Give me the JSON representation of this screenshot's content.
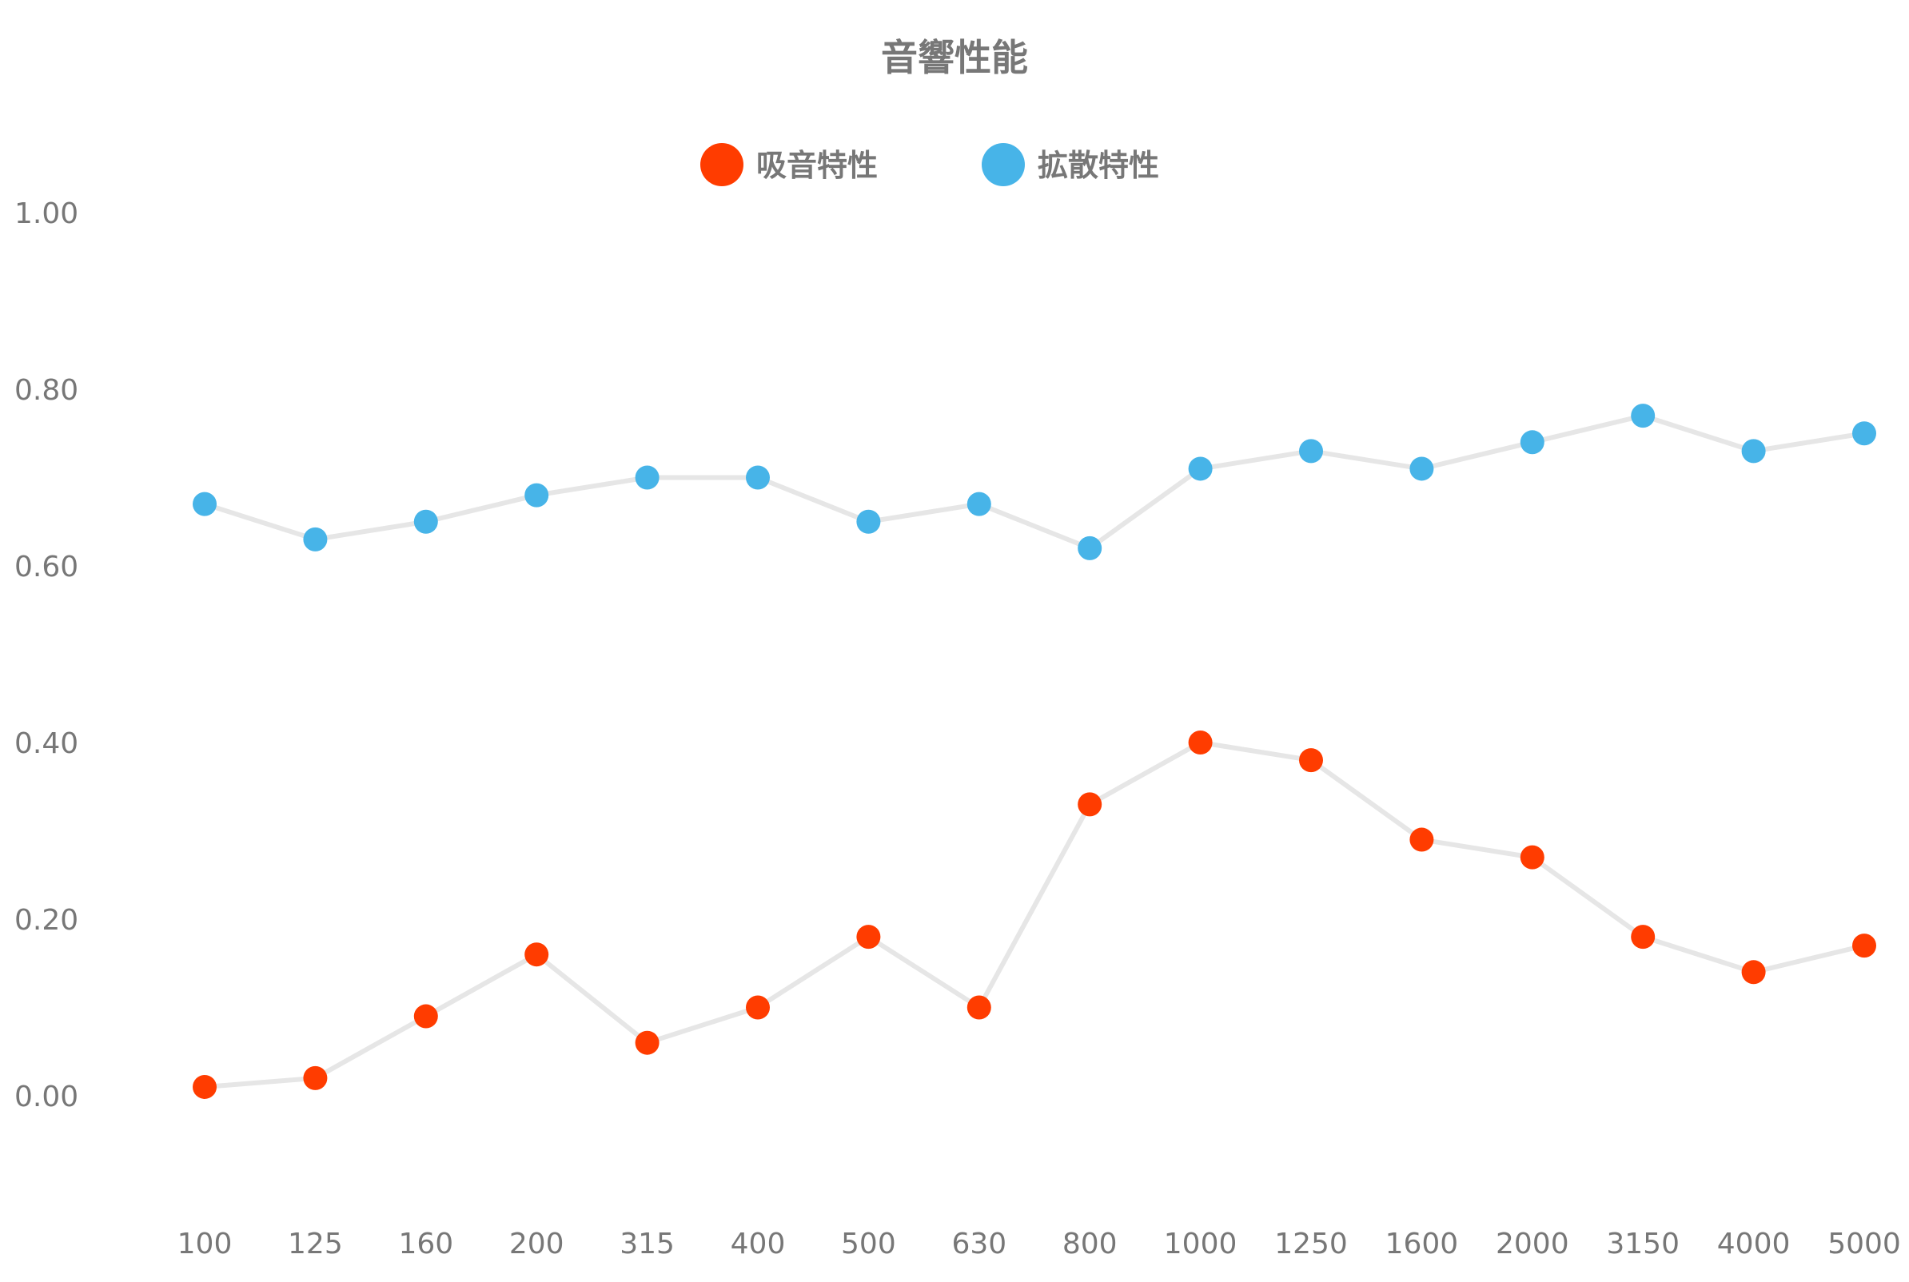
{
  "chart_data": {
    "type": "line",
    "title": "音響性能",
    "xlabel": "",
    "ylabel": "",
    "categories": [
      "100",
      "125",
      "160",
      "200",
      "315",
      "400",
      "500",
      "630",
      "800",
      "1000",
      "1250",
      "1600",
      "2000",
      "3150",
      "4000",
      "5000"
    ],
    "ylim": [
      -0.1,
      1.0
    ],
    "yticks": [
      "0.00",
      "0.20",
      "0.40",
      "0.60",
      "0.80",
      "1.00"
    ],
    "ytick_values": [
      0,
      0.2,
      0.4,
      0.6,
      0.8,
      1.0
    ],
    "grid": false,
    "legend_position": "top-center",
    "line_color": "#e6e6e6",
    "series": [
      {
        "name": "吸音特性",
        "color": "#ff3c00",
        "values": [
          0.01,
          0.02,
          0.09,
          0.16,
          0.06,
          0.1,
          0.18,
          0.1,
          0.33,
          0.4,
          0.38,
          0.29,
          0.27,
          0.18,
          0.14,
          0.17
        ]
      },
      {
        "name": "拡散特性",
        "color": "#47b4e8",
        "values": [
          0.67,
          0.63,
          0.65,
          0.68,
          0.7,
          0.7,
          0.65,
          0.67,
          0.62,
          0.71,
          0.73,
          0.71,
          0.74,
          0.77,
          0.73,
          0.75
        ]
      }
    ]
  }
}
